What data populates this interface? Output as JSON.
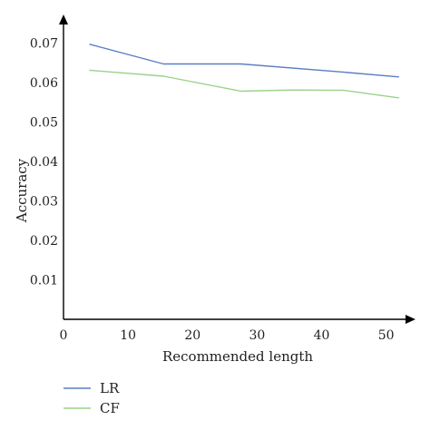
{
  "chart_data": {
    "type": "line",
    "title": "",
    "xlabel": "Recommended length",
    "ylabel": "Accuracy",
    "xlim": [
      0,
      53
    ],
    "ylim": [
      0,
      0.074
    ],
    "xticks": [
      0,
      10,
      20,
      30,
      40,
      50
    ],
    "xtick_labels": [
      "0",
      "10",
      "20",
      "30",
      "40",
      "50"
    ],
    "yticks": [
      0.01,
      0.02,
      0.03,
      0.04,
      0.05,
      0.06,
      0.07
    ],
    "ytick_labels": [
      "0.01",
      "0.02",
      "0.03",
      "0.04",
      "0.05",
      "0.06",
      "0.07"
    ],
    "grid": false,
    "legend_position": "bottom-left",
    "series": [
      {
        "name": "LR",
        "color": "#5b7fc4",
        "x": [
          4,
          15.5,
          27.5,
          43.5,
          52
        ],
        "values": [
          0.0697,
          0.0647,
          0.0647,
          0.0626,
          0.0614
        ]
      },
      {
        "name": "CF",
        "color": "#9bd18a",
        "x": [
          4,
          15.5,
          27.5,
          35.5,
          43.5,
          52
        ],
        "values": [
          0.0631,
          0.0616,
          0.0578,
          0.0581,
          0.058,
          0.0561
        ]
      }
    ]
  }
}
